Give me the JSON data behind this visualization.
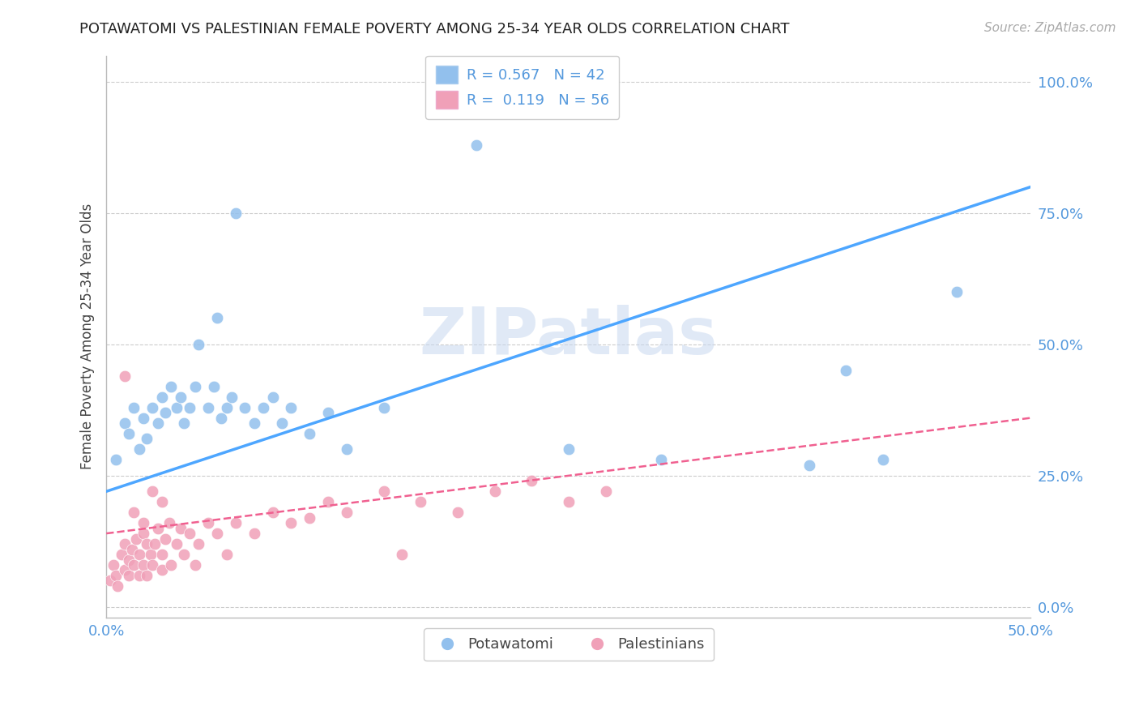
{
  "title": "POTAWATOMI VS PALESTINIAN FEMALE POVERTY AMONG 25-34 YEAR OLDS CORRELATION CHART",
  "source": "Source: ZipAtlas.com",
  "xlim": [
    0.0,
    0.5
  ],
  "ylim": [
    -0.02,
    1.05
  ],
  "ytick_positions": [
    0.0,
    0.25,
    0.5,
    0.75,
    1.0
  ],
  "ytick_labels": [
    "0.0%",
    "25.0%",
    "50.0%",
    "75.0%",
    "100.0%"
  ],
  "xtick_positions": [
    0.0,
    0.5
  ],
  "xtick_labels": [
    "0.0%",
    "50.0%"
  ],
  "R_potawatomi": 0.567,
  "N_potawatomi": 42,
  "R_palestinian": 0.119,
  "N_palestinian": 56,
  "potawatomi_color": "#92c0ed",
  "palestinian_color": "#f0a0b8",
  "potawatomi_line_color": "#4da6ff",
  "palestinian_line_color": "#f06090",
  "watermark": "ZIPatlas",
  "watermark_color": "#c8d8f0",
  "blue_line_x0": 0.0,
  "blue_line_y0": 0.22,
  "blue_line_x1": 0.5,
  "blue_line_y1": 0.8,
  "pink_line_x0": 0.0,
  "pink_line_y0": 0.14,
  "pink_line_x1": 0.5,
  "pink_line_y1": 0.36,
  "potawatomi_x": [
    0.005,
    0.01,
    0.012,
    0.015,
    0.018,
    0.02,
    0.022,
    0.025,
    0.028,
    0.03,
    0.032,
    0.035,
    0.038,
    0.04,
    0.042,
    0.045,
    0.048,
    0.05,
    0.055,
    0.058,
    0.06,
    0.062,
    0.065,
    0.068,
    0.07,
    0.075,
    0.08,
    0.085,
    0.09,
    0.095,
    0.1,
    0.11,
    0.12,
    0.13,
    0.15,
    0.2,
    0.25,
    0.3,
    0.38,
    0.4,
    0.42,
    0.46
  ],
  "potawatomi_y": [
    0.28,
    0.35,
    0.33,
    0.38,
    0.3,
    0.36,
    0.32,
    0.38,
    0.35,
    0.4,
    0.37,
    0.42,
    0.38,
    0.4,
    0.35,
    0.38,
    0.42,
    0.5,
    0.38,
    0.42,
    0.55,
    0.36,
    0.38,
    0.4,
    0.75,
    0.38,
    0.35,
    0.38,
    0.4,
    0.35,
    0.38,
    0.33,
    0.37,
    0.3,
    0.38,
    0.88,
    0.3,
    0.28,
    0.27,
    0.45,
    0.28,
    0.6
  ],
  "palestinian_x": [
    0.002,
    0.004,
    0.005,
    0.006,
    0.008,
    0.01,
    0.01,
    0.012,
    0.012,
    0.014,
    0.015,
    0.016,
    0.018,
    0.018,
    0.02,
    0.02,
    0.022,
    0.022,
    0.024,
    0.025,
    0.026,
    0.028,
    0.03,
    0.03,
    0.032,
    0.034,
    0.035,
    0.038,
    0.04,
    0.042,
    0.045,
    0.048,
    0.05,
    0.055,
    0.06,
    0.065,
    0.07,
    0.08,
    0.09,
    0.1,
    0.11,
    0.12,
    0.13,
    0.15,
    0.17,
    0.19,
    0.21,
    0.23,
    0.25,
    0.27,
    0.01,
    0.015,
    0.02,
    0.025,
    0.03,
    0.16
  ],
  "palestinian_y": [
    0.05,
    0.08,
    0.06,
    0.04,
    0.1,
    0.07,
    0.12,
    0.09,
    0.06,
    0.11,
    0.08,
    0.13,
    0.1,
    0.06,
    0.08,
    0.14,
    0.12,
    0.06,
    0.1,
    0.08,
    0.12,
    0.15,
    0.1,
    0.07,
    0.13,
    0.16,
    0.08,
    0.12,
    0.15,
    0.1,
    0.14,
    0.08,
    0.12,
    0.16,
    0.14,
    0.1,
    0.16,
    0.14,
    0.18,
    0.16,
    0.17,
    0.2,
    0.18,
    0.22,
    0.2,
    0.18,
    0.22,
    0.24,
    0.2,
    0.22,
    0.44,
    0.18,
    0.16,
    0.22,
    0.2,
    0.1
  ]
}
